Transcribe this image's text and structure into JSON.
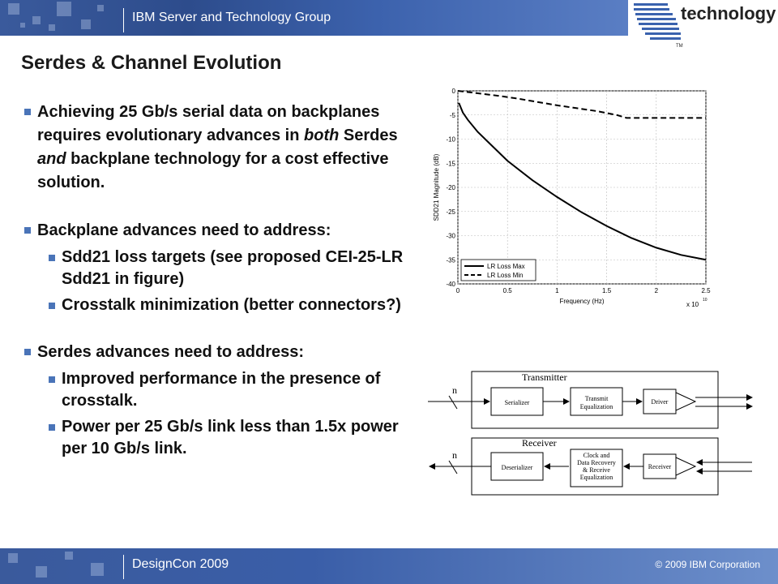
{
  "header": {
    "group_name": "IBM Server and Technology Group"
  },
  "logo": {
    "brand": "IBM",
    "word": "technology",
    "tm": "TM"
  },
  "slide": {
    "title": "Serdes & Channel Evolution",
    "bullets": [
      {
        "level": 1,
        "text": "Achieving 25 Gb/s serial data on backplanes requires evolutionary advances in both Serdes and backplane technology for a cost effective solution."
      },
      {
        "level": 1,
        "text": "Backplane advances need to address:"
      },
      {
        "level": 2,
        "text": "Sdd21 loss targets (see proposed CEI-25-LR Sdd21 in figure)"
      },
      {
        "level": 2,
        "text": "Crosstalk minimization (better connectors?)"
      },
      {
        "level": 1,
        "text": "Serdes advances need to address:"
      },
      {
        "level": 2,
        "text": "Improved performance in the presence of crosstalk."
      },
      {
        "level": 2,
        "text": "Power per 25 Gb/s link less than 1.5x power per 10 Gb/s link."
      }
    ]
  },
  "chart_data": {
    "type": "line",
    "title": "",
    "xlabel": "Frequency (Hz)",
    "ylabel": "SDD21 Magnitude (dB)",
    "x_multiplier": "x 10",
    "x_exponent": "10",
    "xlim": [
      0,
      2.5
    ],
    "ylim": [
      -40,
      0
    ],
    "xticks": [
      "0",
      "0.5",
      "1",
      "1.5",
      "2",
      "2.5"
    ],
    "yticks": [
      "0",
      "-5",
      "-10",
      "-15",
      "-20",
      "-25",
      "-30",
      "-35",
      "-40"
    ],
    "grid": true,
    "legend": "bottom-left",
    "series": [
      {
        "name": "LR Loss Max",
        "style": "solid",
        "x": [
          0.01,
          0.05,
          0.1,
          0.2,
          0.3,
          0.5,
          0.75,
          1.0,
          1.25,
          1.5,
          1.75,
          2.0,
          2.25,
          2.5
        ],
        "y": [
          -2.5,
          -4.5,
          -6.0,
          -8.5,
          -10.5,
          -14.5,
          -18.5,
          -22.0,
          -25.2,
          -28.0,
          -30.5,
          -32.5,
          -34.0,
          -35.0
        ]
      },
      {
        "name": "LR Loss Min",
        "style": "dashed",
        "x": [
          0.0,
          0.2,
          0.4,
          0.6,
          0.8,
          1.0,
          1.2,
          1.4,
          1.6,
          1.7,
          2.0,
          2.25,
          2.5
        ],
        "y": [
          0.0,
          -0.5,
          -1.0,
          -1.6,
          -2.3,
          -3.0,
          -3.6,
          -4.2,
          -5.0,
          -5.6,
          -5.6,
          -5.6,
          -5.6
        ]
      }
    ]
  },
  "diagram": {
    "transmitter": {
      "label": "Transmitter",
      "blocks": [
        "Serializer",
        "Transmit Equalization",
        "Driver"
      ],
      "bus": "n"
    },
    "receiver": {
      "label": "Receiver",
      "blocks": [
        "Deserializer",
        "Clock and Data Recovery & Receive Equalization",
        "Receiver"
      ],
      "bus": "n"
    }
  },
  "footer": {
    "conference": "DesignCon 2009",
    "copyright": "© 2009  IBM Corporation"
  }
}
